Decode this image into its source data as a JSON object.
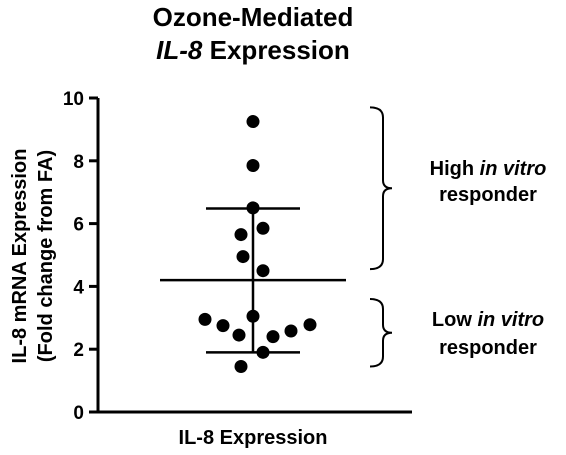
{
  "chart_data": {
    "type": "scatter",
    "title_line1": "Ozone-Mediated",
    "title_line2_italic": "IL-8",
    "title_line2_rest": " Expression",
    "ylabel_line1": "IL-8 mRNA Expression",
    "ylabel_line2": "(Fold change from FA)",
    "xlabel": "IL-8 Expression",
    "ylim": [
      0,
      10
    ],
    "yticks": [
      0,
      2,
      4,
      6,
      8,
      10
    ],
    "points": [
      {
        "x": 0.0,
        "y": 9.25
      },
      {
        "x": 0.0,
        "y": 7.85
      },
      {
        "x": 0.0,
        "y": 6.5
      },
      {
        "x": -0.12,
        "y": 5.65
      },
      {
        "x": 0.1,
        "y": 5.85
      },
      {
        "x": -0.1,
        "y": 4.95
      },
      {
        "x": 0.1,
        "y": 4.5
      },
      {
        "x": 0.0,
        "y": 3.05
      },
      {
        "x": -0.48,
        "y": 2.95
      },
      {
        "x": -0.3,
        "y": 2.75
      },
      {
        "x": 0.57,
        "y": 2.78
      },
      {
        "x": 0.38,
        "y": 2.58
      },
      {
        "x": -0.14,
        "y": 2.45
      },
      {
        "x": 0.2,
        "y": 2.4
      },
      {
        "x": 0.1,
        "y": 1.9
      },
      {
        "x": -0.12,
        "y": 1.45
      }
    ],
    "mean": 4.2,
    "sd_upper": 6.48,
    "sd_lower": 1.9,
    "annotations": {
      "high": {
        "line1_plain": "High ",
        "line1_italic": "in vitro",
        "line2": "responder",
        "range": [
          4.55,
          9.7
        ]
      },
      "low": {
        "line1_plain": "Low ",
        "line1_italic": "in vitro",
        "line2": "responder",
        "range": [
          1.45,
          3.6
        ]
      }
    }
  }
}
